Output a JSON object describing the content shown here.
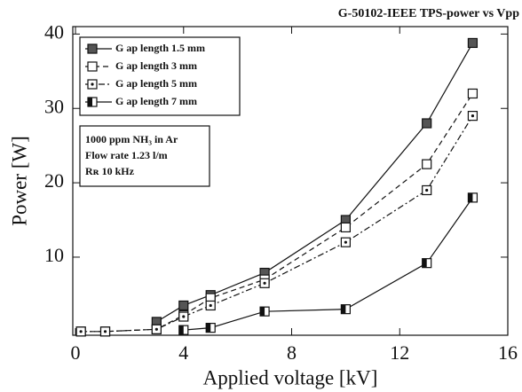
{
  "chart_data": {
    "type": "line",
    "title": "G-50102-IEEE TPS-power vs Vpp",
    "xlabel": "Applied voltage [kV]",
    "ylabel": "Power [W]",
    "xlim": [
      -0.1,
      16
    ],
    "xticks": [
      0,
      4,
      8,
      12,
      16
    ],
    "ylim": [
      -0.5,
      41
    ],
    "yticks": [
      10,
      20,
      30,
      40
    ],
    "annotations": [
      "1000 ppm NH₃ in Ar",
      "Flow rate 1.23 l/m",
      "Rʀ 10 kHz"
    ],
    "series": [
      {
        "name": "G ap length 1.5 mm",
        "color": "#111111",
        "dash": "solid",
        "marker": "filled",
        "x": [
          3,
          4,
          5,
          7,
          10,
          13,
          14.7
        ],
        "values": [
          1.3,
          3.5,
          4.9,
          7.9,
          15,
          28,
          38.8
        ]
      },
      {
        "name": "G ap length 3 mm",
        "color": "#111111",
        "dash": "dashed",
        "marker": "open",
        "x": [
          0.2,
          1.1,
          3,
          4,
          5,
          7,
          10,
          13,
          14.7
        ],
        "values": [
          0,
          0,
          0.3,
          2.2,
          4.5,
          7,
          14,
          22.5,
          32
        ]
      },
      {
        "name": "G ap length 5 mm",
        "color": "#111111",
        "dash": "dashdot",
        "marker": "dotted",
        "x": [
          0.2,
          1.1,
          3,
          4,
          5,
          7,
          10,
          13,
          14.7
        ],
        "values": [
          0,
          0,
          0.3,
          2,
          3.5,
          6.5,
          12,
          19,
          29
        ]
      },
      {
        "name": "G ap length 7 mm",
        "color": "#111111",
        "dash": "solid",
        "marker": "half",
        "x": [
          4,
          5,
          7,
          10,
          13,
          14.7
        ],
        "values": [
          0.2,
          0.5,
          2.7,
          3,
          9.2,
          18
        ]
      }
    ]
  }
}
